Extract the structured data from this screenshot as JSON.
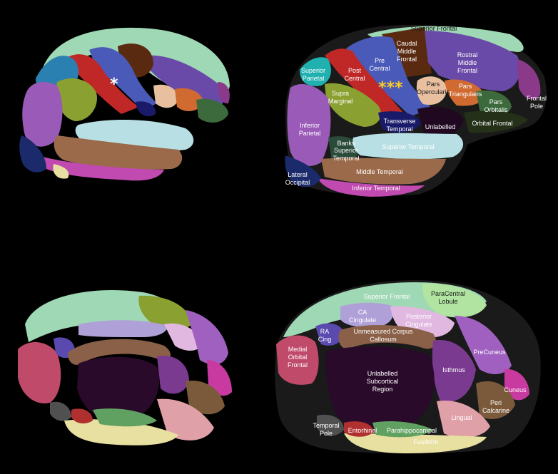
{
  "markers": {
    "single": "*",
    "triple": "***"
  },
  "lateral_labels": {
    "superior_frontal": "Superior Frontal",
    "caudal_middle_frontal": [
      "Caudal",
      "Middle",
      "Frontal"
    ],
    "rostral_middle_frontal": [
      "Rostral",
      "Middle",
      "Frontal"
    ],
    "pre_central": [
      "Pre",
      "Central"
    ],
    "post_central": [
      "Post",
      "Central"
    ],
    "superior_parietal": [
      "Superior",
      "Parietal"
    ],
    "supra_marginal": [
      "Supra",
      "Marginal"
    ],
    "pars_opercularis": [
      "Pars",
      "Opercularis"
    ],
    "pars_triangularis": [
      "Pars",
      "Triangularis"
    ],
    "pars_orbitalis": [
      "Pars",
      "Orbitalis"
    ],
    "frontal_pole": [
      "Frontal",
      "Pole"
    ],
    "orbital_frontal": "Orbital Frontal",
    "transverse_temporal": [
      "Transverse",
      "Temporal"
    ],
    "unlabelled": "Unlabelled",
    "inferior_parietal": [
      "Inferior",
      "Parietal"
    ],
    "banks_superior_temporal": [
      "Banks",
      "Superior",
      "Temporal"
    ],
    "superior_temporal": "Superior Temporal",
    "middle_temporal": "Middle Temporal",
    "lateral_occipital": [
      "Lateral",
      "Occipital"
    ],
    "inferior_temporal": "Inferior Temporal"
  },
  "medial_labels": {
    "superior_frontal": "Superior Frontal",
    "paracentral_lobule": [
      "ParaCentral",
      "Lobule"
    ],
    "ca_cingulate": [
      "CA",
      "Cingulate"
    ],
    "posterior_cingulate": [
      "Posterior",
      "Cingulate"
    ],
    "ra_cing": [
      "RA",
      "Cing"
    ],
    "unmeasured_corpus_callosum": [
      "Unmeasured Corpus",
      "Callosum"
    ],
    "medial_orbital_frontal": [
      "Medial",
      "Orbital",
      "Frontal"
    ],
    "precuneus": "PreCuneus",
    "unlabelled_subcortical_region": [
      "Unlabelled",
      "Subcortical",
      "Region"
    ],
    "isthmus": "Isthmus",
    "cuneus": "Cuneus",
    "peri_calcarine": [
      "Peri",
      "Calcarine"
    ],
    "lingual": "Lingual",
    "temporal_pole": [
      "Temporal",
      "Pole"
    ],
    "entorhinal": "Entorhinal",
    "parahippocampal": "Parahippocampal",
    "fusiform": "Fusiform"
  },
  "colors": {
    "superior_frontal": "#9fd8b4",
    "caudal_middle_frontal": "#5a2a10",
    "rostral_middle_frontal": "#6a4aa8",
    "pre_central": "#4a5ab8",
    "post_central": "#c02828",
    "superior_parietal": "#20b0b0",
    "supra_marginal": "#8aa030",
    "pars_opercularis": "#e8c0a0",
    "pars_triangularis": "#d06a30",
    "pars_orbitalis": "#3c6a3c",
    "frontal_pole": "#8a3a88",
    "orbital_frontal": "#243018",
    "transverse_temporal": "#1a1a6a",
    "unlabelled": "#200820",
    "inferior_parietal": "#9a5ab8",
    "banks_superior_temporal": "#2a4a3a",
    "superior_temporal": "#b8e0e4",
    "middle_temporal": "#9a6a4a",
    "lateral_occipital": "#1a2a6a",
    "inferior_temporal": "#c04ab0",
    "paracentral_lobule": "#b0e4a0",
    "ca_cingulate": "#b0a0d8",
    "posterior_cingulate": "#e0b8e0",
    "ra_cing": "#5a4ab0",
    "corpus_callosum": "#8a6048",
    "medial_orbital_frontal": "#c04a6a",
    "precuneus": "#a060c0",
    "subcortical": "#2a0a2a",
    "isthmus": "#7a3a90",
    "cuneus": "#c83aa0",
    "peri_calcarine": "#7a5a3a",
    "lingual": "#e0a0a8",
    "temporal_pole": "#505050",
    "entorhinal": "#b03030",
    "parahippocampal": "#60a060",
    "fusiform": "#e8e0a0"
  }
}
